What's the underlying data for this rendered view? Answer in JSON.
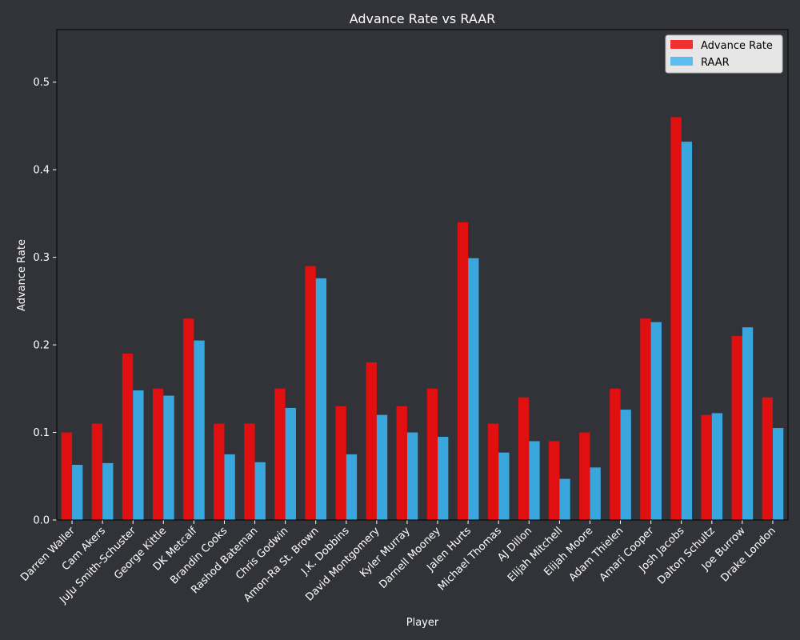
{
  "chart_data": {
    "type": "bar",
    "title": "Advance Rate vs RAAR",
    "xlabel": "Player",
    "ylabel": "Advance Rate",
    "ylim": [
      0,
      0.56
    ],
    "yticks": [
      0.0,
      0.1,
      0.2,
      0.3,
      0.4,
      0.5
    ],
    "ytick_labels": [
      "0.0",
      "0.1",
      "0.2",
      "0.3",
      "0.4",
      "0.5"
    ],
    "legend_position": "top-right",
    "grid": false,
    "categories": [
      "Darren Waller",
      "Cam Akers",
      "JuJu Smith-Schuster",
      "George Kittle",
      "DK Metcalf",
      "Brandin Cooks",
      "Rashod Bateman",
      "Chris Godwin",
      "Amon-Ra St. Brown",
      "J.K. Dobbins",
      "David Montgomery",
      "Kyler Murray",
      "Darnell Mooney",
      "Jalen Hurts",
      "Michael Thomas",
      "AJ Dillon",
      "Elijah Mitchell",
      "Elijah Moore",
      "Adam Thielen",
      "Amari Cooper",
      "Josh Jacobs",
      "Dalton Schultz",
      "Joe Burrow",
      "Drake London"
    ],
    "series": [
      {
        "name": "Advance Rate",
        "color": "#e01010",
        "values": [
          0.1,
          0.11,
          0.19,
          0.15,
          0.23,
          0.11,
          0.11,
          0.15,
          0.29,
          0.13,
          0.18,
          0.13,
          0.15,
          0.34,
          0.11,
          0.14,
          0.09,
          0.1,
          0.15,
          0.23,
          0.46,
          0.12,
          0.21,
          0.14
        ]
      },
      {
        "name": "RAAR",
        "color": "#3aa6de",
        "values": [
          0.063,
          0.065,
          0.148,
          0.142,
          0.205,
          0.075,
          0.066,
          0.128,
          0.276,
          0.075,
          0.12,
          0.1,
          0.095,
          0.299,
          0.077,
          0.09,
          0.047,
          0.06,
          0.126,
          0.226,
          0.432,
          0.122,
          0.22,
          0.105
        ]
      }
    ]
  },
  "legend_colors": {
    "Advance Rate": "#f03030",
    "RAAR": "#5bbdf0"
  }
}
